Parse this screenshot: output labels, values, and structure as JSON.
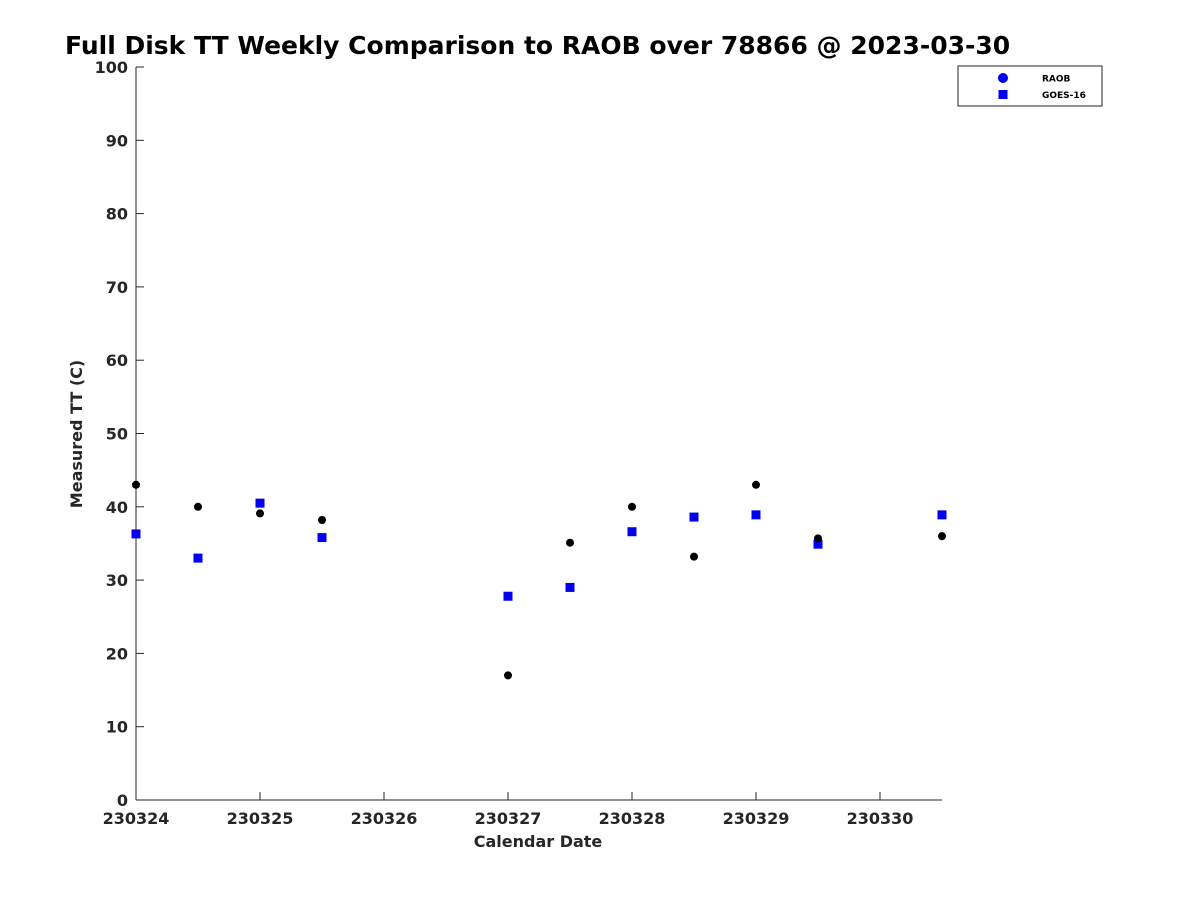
{
  "chart_data": {
    "type": "scatter",
    "title": "Full Disk TT Weekly Comparison to RAOB over 78866 @ 2023-03-30",
    "xlabel": "Calendar Date",
    "ylabel": "Measured TT (C)",
    "xlim": [
      "2023-03-24",
      "2023-03-30 12:00"
    ],
    "ylim": [
      0,
      100
    ],
    "x_ticks": [
      {
        "label": "230324",
        "value": "2023-03-24"
      },
      {
        "label": "230325",
        "value": "2023-03-25"
      },
      {
        "label": "230326",
        "value": "2023-03-26"
      },
      {
        "label": "230327",
        "value": "2023-03-27"
      },
      {
        "label": "230328",
        "value": "2023-03-28"
      },
      {
        "label": "230329",
        "value": "2023-03-29"
      },
      {
        "label": "230330",
        "value": "2023-03-30"
      }
    ],
    "y_ticks": [
      0,
      10,
      20,
      30,
      40,
      50,
      60,
      70,
      80,
      90,
      100
    ],
    "grid": false,
    "legend_position": "top-right",
    "series": [
      {
        "name": "RAOB",
        "marker": "circle",
        "color": "#000000",
        "legend_color": "#0000ee",
        "points": [
          {
            "x": "2023-03-24 00:00",
            "y": 43.0
          },
          {
            "x": "2023-03-24 12:00",
            "y": 40.0
          },
          {
            "x": "2023-03-25 00:00",
            "y": 39.1
          },
          {
            "x": "2023-03-25 12:00",
            "y": 38.2
          },
          {
            "x": "2023-03-27 00:00",
            "y": 17.0
          },
          {
            "x": "2023-03-27 12:00",
            "y": 35.1
          },
          {
            "x": "2023-03-28 00:00",
            "y": 40.0
          },
          {
            "x": "2023-03-28 12:00",
            "y": 33.2
          },
          {
            "x": "2023-03-29 00:00",
            "y": 43.0
          },
          {
            "x": "2023-03-29 12:00",
            "y": 35.7
          },
          {
            "x": "2023-03-30 12:00",
            "y": 36.0
          }
        ]
      },
      {
        "name": "GOES-16",
        "marker": "square",
        "color": "#0000ee",
        "points": [
          {
            "x": "2023-03-24 00:00",
            "y": 36.3
          },
          {
            "x": "2023-03-24 12:00",
            "y": 33.0
          },
          {
            "x": "2023-03-25 00:00",
            "y": 40.5
          },
          {
            "x": "2023-03-25 12:00",
            "y": 35.8
          },
          {
            "x": "2023-03-27 00:00",
            "y": 27.8
          },
          {
            "x": "2023-03-27 12:00",
            "y": 29.0
          },
          {
            "x": "2023-03-28 00:00",
            "y": 36.6
          },
          {
            "x": "2023-03-28 12:00",
            "y": 38.6
          },
          {
            "x": "2023-03-29 00:00",
            "y": 38.9
          },
          {
            "x": "2023-03-29 12:00",
            "y": 34.9
          },
          {
            "x": "2023-03-30 12:00",
            "y": 38.9
          }
        ]
      }
    ]
  }
}
